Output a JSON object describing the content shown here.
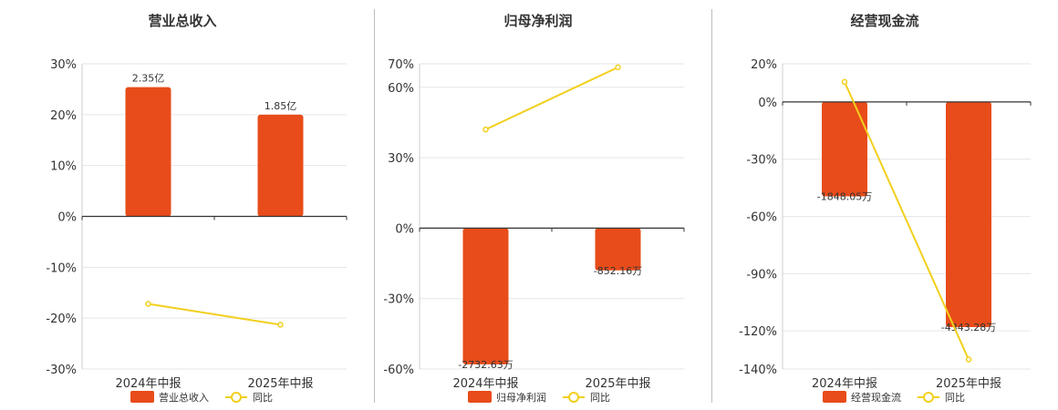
{
  "colors": {
    "bar": "#e84c1a",
    "line": "#f2cf1d",
    "grid": "#e6e6e6",
    "axis": "#333333",
    "divider": "#bdbdbd"
  },
  "chart_data": [
    {
      "type": "bar",
      "title": "营业总收入",
      "categories": [
        "2024年中报",
        "2025年中报"
      ],
      "series": [
        {
          "name": "营业总收入",
          "kind": "bar",
          "values": [
            25.4,
            20.0
          ],
          "labels": [
            "2.35亿",
            "1.85亿"
          ]
        },
        {
          "name": "同比",
          "kind": "line",
          "values": [
            -17.2,
            -21.3
          ]
        }
      ],
      "yticks": [
        30,
        20,
        10,
        0,
        -10,
        -20,
        -30
      ],
      "ytick_labels": [
        "30%",
        "20%",
        "10%",
        "0%",
        "-10%",
        "-20%",
        "-30%"
      ],
      "ylim": [
        -30,
        30
      ],
      "grid": true,
      "legend": "bottom"
    },
    {
      "type": "bar",
      "title": "归母净利润",
      "categories": [
        "2024年中报",
        "2025年中报"
      ],
      "series": [
        {
          "name": "归母净利润",
          "kind": "bar",
          "values": [
            -58,
            -18
          ],
          "labels": [
            "-2732.63万",
            "-852.16万"
          ]
        },
        {
          "name": "同比",
          "kind": "line",
          "values": [
            42,
            68.5
          ]
        }
      ],
      "yticks": [
        70,
        60,
        30,
        0,
        -30,
        -60
      ],
      "ytick_labels": [
        "70%",
        "60%",
        "30%",
        "0%",
        "-30%",
        "-60%"
      ],
      "ylim": [
        -60,
        70
      ],
      "grid": true,
      "legend": "bottom"
    },
    {
      "type": "bar",
      "title": "经营现金流",
      "categories": [
        "2024年中报",
        "2025年中报"
      ],
      "series": [
        {
          "name": "经营现金流",
          "kind": "bar",
          "values": [
            -49.5,
            -118
          ],
          "labels": [
            "-1848.05万",
            "-4343.28万"
          ]
        },
        {
          "name": "同比",
          "kind": "line",
          "values": [
            10.5,
            -135
          ]
        }
      ],
      "yticks": [
        20,
        0,
        -30,
        -60,
        -90,
        -120,
        -140
      ],
      "ytick_labels": [
        "20%",
        "0%",
        "-30%",
        "-60%",
        "-90%",
        "-120%",
        "-140%"
      ],
      "ylim": [
        -140,
        20
      ],
      "grid": true,
      "legend": "bottom"
    }
  ]
}
